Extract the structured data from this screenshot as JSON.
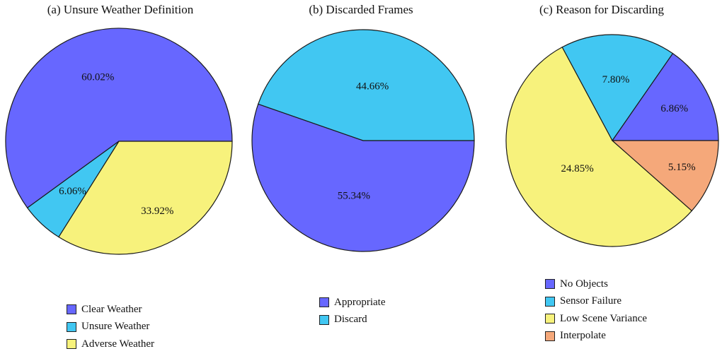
{
  "chart_data": [
    {
      "type": "pie",
      "title": "(a) Unsure Weather Definition",
      "categories": [
        "Clear Weather",
        "Unsure Weather",
        "Adverse Weather"
      ],
      "values": [
        60.02,
        6.06,
        33.92
      ],
      "labels": [
        "60.02%",
        "6.06%",
        "33.92%"
      ],
      "colors": [
        "#6767ff",
        "#41c7f2",
        "#f7f27c"
      ],
      "legend_position": "bottom"
    },
    {
      "type": "pie",
      "title": "(b) Discarded Frames",
      "categories": [
        "Appropriate",
        "Discard"
      ],
      "values": [
        55.34,
        44.66
      ],
      "labels": [
        "55.34%",
        "44.66%"
      ],
      "colors": [
        "#6767ff",
        "#41c7f2"
      ],
      "legend_position": "bottom"
    },
    {
      "type": "pie",
      "title": "(c) Reason for Discarding",
      "categories": [
        "No Objects",
        "Sensor Failure",
        "Low Scene Variance",
        "Interpolate"
      ],
      "values": [
        6.86,
        7.8,
        24.85,
        5.15
      ],
      "labels": [
        "6.86%",
        "7.80%",
        "24.85%",
        "5.15%"
      ],
      "colors": [
        "#6767ff",
        "#41c7f2",
        "#f7f27c",
        "#f5a87a"
      ],
      "legend_position": "bottom"
    }
  ]
}
